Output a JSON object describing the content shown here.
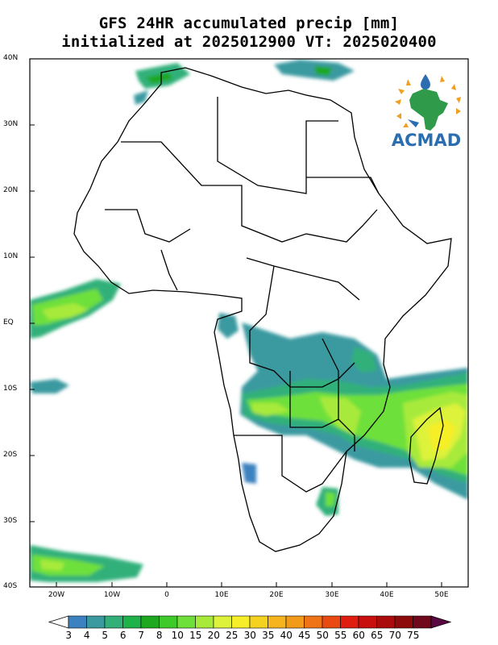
{
  "title_line1": "GFS 24HR accumulated precip [mm]",
  "title_line2": "initialized at 2025012900 VT: 2025020400",
  "logo_text": "ACMAD",
  "lat_labels": [
    "40N",
    "30N",
    "20N",
    "10N",
    "EQ",
    "10S",
    "20S",
    "30S",
    "40S"
  ],
  "lon_labels": [
    "20W",
    "10W",
    "0",
    "10E",
    "20E",
    "30E",
    "40E",
    "50E"
  ],
  "colorbar": {
    "labels": [
      "3",
      "4",
      "5",
      "6",
      "7",
      "8",
      "10",
      "15",
      "20",
      "25",
      "30",
      "35",
      "40",
      "45",
      "50",
      "55",
      "60",
      "65",
      "70",
      "75"
    ],
    "colors": [
      "#3d82c0",
      "#3a9aa0",
      "#33b07a",
      "#1fb24a",
      "#1ea81f",
      "#3fca2c",
      "#6ee03a",
      "#a8ea3a",
      "#ddf23a",
      "#f6ee28",
      "#f6d220",
      "#f6b51e",
      "#f29a1a",
      "#ee7416",
      "#e84a12",
      "#e01e10",
      "#c8100e",
      "#aa0c0c",
      "#8e0b0b",
      "#70091c",
      "#5a0840"
    ]
  },
  "map": {
    "lon_range": [
      -25,
      55
    ],
    "lat_range": [
      -40,
      40
    ],
    "field": "24hr accumulated precipitation",
    "units": "mm"
  }
}
